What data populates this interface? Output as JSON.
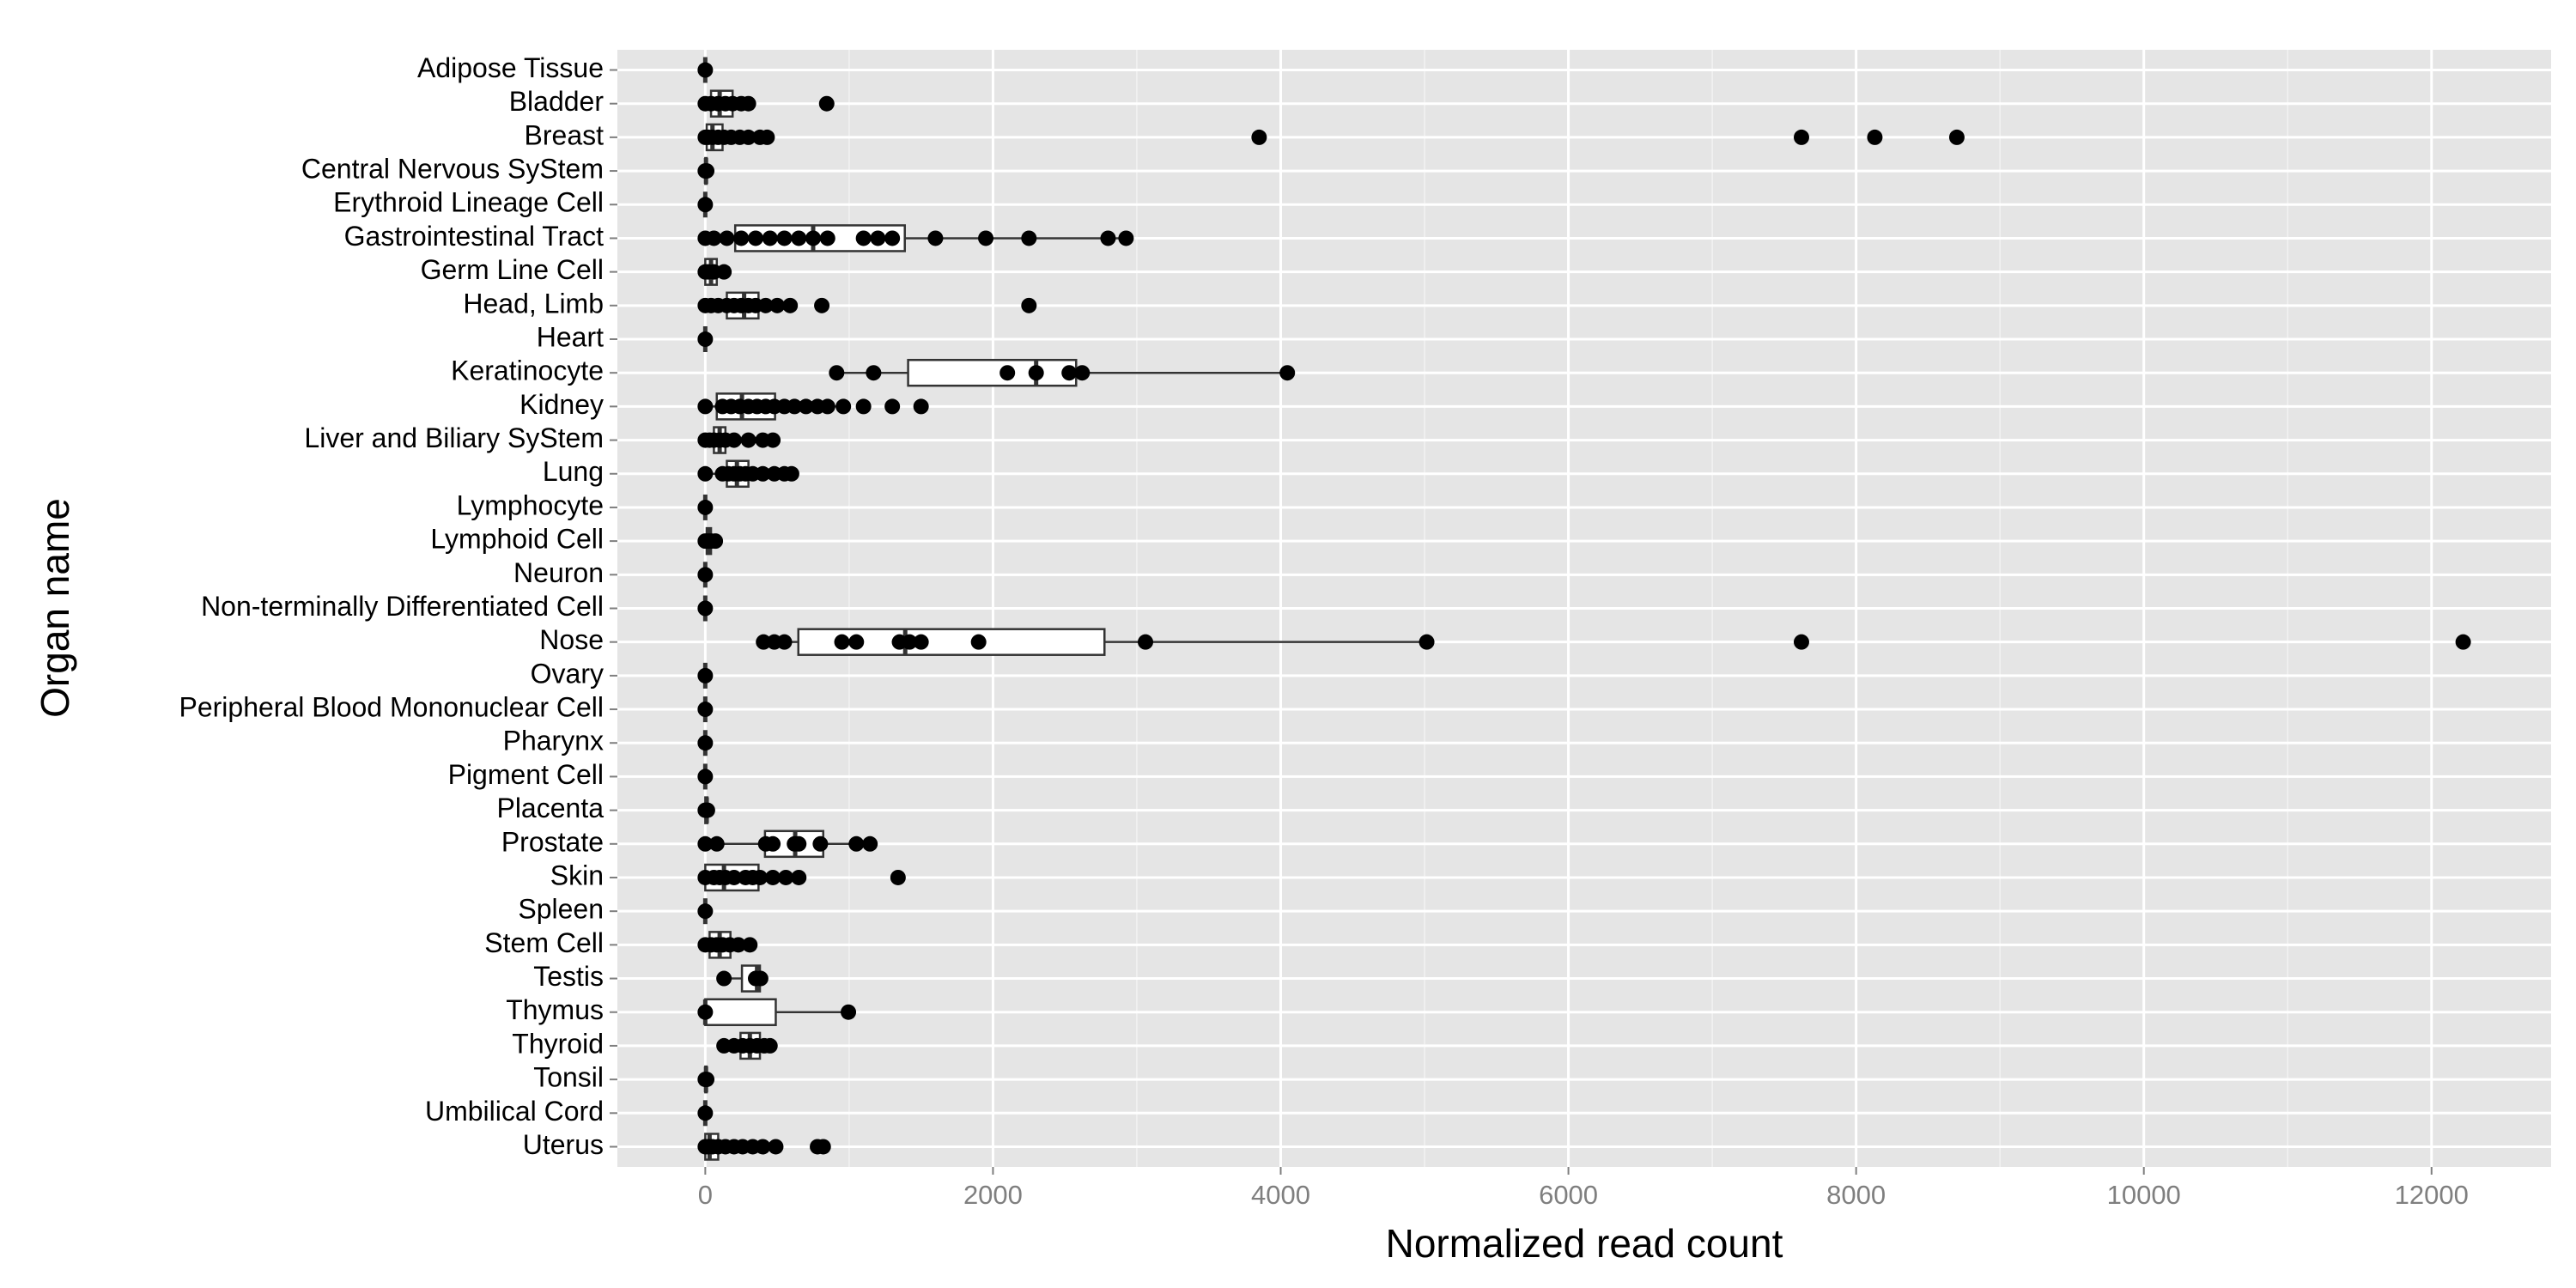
{
  "chart_data": {
    "type": "boxplot",
    "orientation": "horizontal",
    "xlabel": "Normalized read count",
    "ylabel": "Organ name",
    "categories": [
      "Adipose Tissue",
      "Bladder",
      "Breast",
      "Central Nervous SyStem",
      "Erythroid Lineage Cell",
      "Gastrointestinal Tract",
      "Germ Line Cell",
      "Head, Limb",
      "Heart",
      "Keratinocyte",
      "Kidney",
      "Liver and Biliary SyStem",
      "Lung",
      "Lymphocyte",
      "Lymphoid Cell",
      "Neuron",
      "Non-terminally Differentiated Cell",
      "Nose",
      "Ovary",
      "Peripheral Blood Mononuclear Cell",
      "Pharynx",
      "Pigment Cell",
      "Placenta",
      "Prostate",
      "Skin",
      "Spleen",
      "Stem Cell",
      "Testis",
      "Thymus",
      "Thyroid",
      "Tonsil",
      "Umbilical Cord",
      "Uterus"
    ],
    "boxes": [
      {
        "low": 0,
        "q1": 0,
        "median": 0,
        "q3": 0,
        "high": 0
      },
      {
        "low": 0,
        "q1": 40,
        "median": 100,
        "q3": 190,
        "high": 300
      },
      {
        "low": 0,
        "q1": 10,
        "median": 50,
        "q3": 120,
        "high": 300
      },
      {
        "low": 0,
        "q1": 0,
        "median": 5,
        "q3": 10,
        "high": 10
      },
      {
        "low": 0,
        "q1": 0,
        "median": 0,
        "q3": 0,
        "high": 0
      },
      {
        "low": 0,
        "q1": 208,
        "median": 750,
        "q3": 1387,
        "high": 2925
      },
      {
        "low": 0,
        "q1": 0,
        "median": 40,
        "q3": 80,
        "high": 130
      },
      {
        "low": 0,
        "q1": 150,
        "median": 270,
        "q3": 370,
        "high": 590
      },
      {
        "low": 0,
        "q1": 0,
        "median": 0,
        "q3": 0,
        "high": 0
      },
      {
        "low": 913,
        "q1": 1410,
        "median": 2300,
        "q3": 2578,
        "high": 4046
      },
      {
        "low": 0,
        "q1": 80,
        "median": 255,
        "q3": 485,
        "high": 960
      },
      {
        "low": 0,
        "q1": 60,
        "median": 100,
        "q3": 140,
        "high": 250
      },
      {
        "low": 0,
        "q1": 150,
        "median": 220,
        "q3": 300,
        "high": 520
      },
      {
        "low": 0,
        "q1": 0,
        "median": 0,
        "q3": 0,
        "high": 0
      },
      {
        "low": 0,
        "q1": 10,
        "median": 20,
        "q3": 40,
        "high": 70
      },
      {
        "low": 0,
        "q1": 0,
        "median": 0,
        "q3": 0,
        "high": 0
      },
      {
        "low": 0,
        "q1": 0,
        "median": 0,
        "q3": 0,
        "high": 0
      },
      {
        "low": 405,
        "q1": 647,
        "median": 1390,
        "q3": 2775,
        "high": 5015
      },
      {
        "low": 0,
        "q1": 0,
        "median": 0,
        "q3": 0,
        "high": 0
      },
      {
        "low": 0,
        "q1": 0,
        "median": 0,
        "q3": 0,
        "high": 0
      },
      {
        "low": 0,
        "q1": 0,
        "median": 0,
        "q3": 0,
        "high": 0
      },
      {
        "low": 0,
        "q1": 0,
        "median": 0,
        "q3": 0,
        "high": 0
      },
      {
        "low": 0,
        "q1": 0,
        "median": 10,
        "q3": 15,
        "high": 15
      },
      {
        "low": 0,
        "q1": 415,
        "median": 625,
        "q3": 820,
        "high": 1145
      },
      {
        "low": 0,
        "q1": 0,
        "median": 130,
        "q3": 370,
        "high": 650
      },
      {
        "low": 0,
        "q1": 0,
        "median": 0,
        "q3": 0,
        "high": 0
      },
      {
        "low": 0,
        "q1": 30,
        "median": 100,
        "q3": 175,
        "high": 310
      },
      {
        "low": 130,
        "q1": 255,
        "median": 360,
        "q3": 380,
        "high": 390
      },
      {
        "low": 0,
        "q1": 0,
        "median": 0,
        "q3": 490,
        "high": 995
      },
      {
        "low": 130,
        "q1": 245,
        "median": 310,
        "q3": 380,
        "high": 450
      },
      {
        "low": 0,
        "q1": 0,
        "median": 5,
        "q3": 10,
        "high": 10
      },
      {
        "low": 0,
        "q1": 0,
        "median": 0,
        "q3": 0,
        "high": 0
      },
      {
        "low": 0,
        "q1": 0,
        "median": 30,
        "q3": 90,
        "high": 400
      }
    ],
    "points": [
      [
        0
      ],
      [
        0,
        40,
        90,
        140,
        190,
        250,
        300,
        844
      ],
      [
        0,
        20,
        50,
        90,
        130,
        180,
        240,
        300,
        380,
        430,
        3850,
        7620,
        8130,
        8700
      ],
      [
        0,
        10
      ],
      [
        0
      ],
      [
        0,
        60,
        150,
        250,
        350,
        450,
        550,
        650,
        750,
        850,
        1100,
        1200,
        1300,
        1600,
        1950,
        2250,
        2800,
        2925
      ],
      [
        0,
        20,
        60,
        130
      ],
      [
        0,
        40,
        90,
        150,
        200,
        250,
        300,
        350,
        420,
        500,
        590,
        810,
        2250
      ],
      [
        0
      ],
      [
        913,
        1170,
        2100,
        2300,
        2530,
        2620,
        4046
      ],
      [
        0,
        120,
        180,
        240,
        300,
        360,
        420,
        480,
        550,
        620,
        700,
        780,
        850,
        960,
        1100,
        1300,
        1500
      ],
      [
        0,
        30,
        60,
        100,
        140,
        200,
        300,
        400,
        470
      ],
      [
        0,
        120,
        160,
        200,
        240,
        280,
        330,
        400,
        480,
        550,
        600
      ],
      [
        0
      ],
      [
        0,
        20,
        40,
        70
      ],
      [
        0
      ],
      [
        0
      ],
      [
        405,
        480,
        550,
        950,
        1050,
        1350,
        1420,
        1500,
        1900,
        3060,
        5015,
        7620,
        12220
      ],
      [
        0
      ],
      [
        0
      ],
      [
        0
      ],
      [
        0
      ],
      [
        0,
        15
      ],
      [
        0,
        80,
        420,
        470,
        620,
        650,
        800,
        1050,
        1145
      ],
      [
        0,
        60,
        100,
        140,
        200,
        280,
        330,
        380,
        470,
        560,
        650,
        1340
      ],
      [
        0
      ],
      [
        0,
        40,
        80,
        120,
        170,
        230,
        310
      ],
      [
        130,
        350,
        385
      ],
      [
        0,
        995
      ],
      [
        130,
        200,
        260,
        310,
        360,
        410,
        450
      ],
      [
        0,
        10
      ],
      [
        0
      ],
      [
        0,
        20,
        50,
        90,
        140,
        200,
        260,
        330,
        400,
        490,
        780,
        820
      ]
    ],
    "xlim": [
      -611,
      12831
    ],
    "xticks": [
      0,
      2000,
      4000,
      6000,
      8000,
      10000,
      12000
    ],
    "xminor": [
      1000,
      3000,
      5000,
      7000,
      9000,
      11000
    ],
    "grid": true,
    "panel_color": "#e5e5e5",
    "color": "#000000",
    "box_fill": "#ffffff"
  }
}
